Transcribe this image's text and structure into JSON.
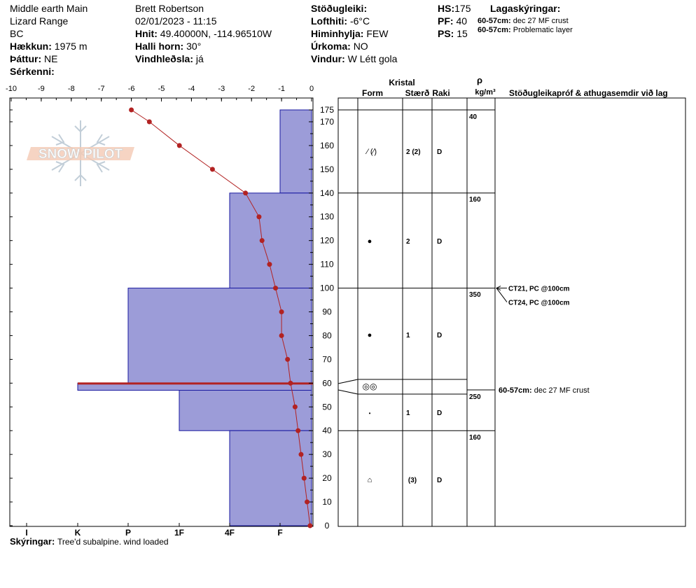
{
  "header": {
    "location": "Middle earth Main",
    "range": "Lizard Range",
    "region": "BC",
    "elevation_label": "Hækkun:",
    "elevation_value": "1975 m",
    "aspect_label": "Þáttur:",
    "aspect_value": "NE",
    "features_label": "Sérkenni:",
    "features_value": "",
    "observer": "Brett Robertson",
    "datetime": "02/01/2023 - 11:15",
    "coords_label": "Hnit:",
    "coords_value": "49.40000N, -114.96510W",
    "slope_label": "Halli horn:",
    "slope_value": "30°",
    "wind_loading_label": "Vindhleðsla:",
    "wind_loading_value": "já",
    "stability_label": "Stöðugleiki:",
    "stability_value": "",
    "airtemp_label": "Lofthiti:",
    "airtemp_value": "-6°C",
    "sky_label": "Himinhylja:",
    "sky_value": "FEW",
    "precip_label": "Úrkoma:",
    "precip_value": "NO",
    "wind_label": "Vindur:",
    "wind_value": "W Létt gola",
    "hs_label": "HS:",
    "hs_value": "175",
    "pf_label": "PF:",
    "pf_value": "40",
    "ps_label": "PS:",
    "ps_value": "15",
    "legend_title": "Lagaskýringar:",
    "legend_items": [
      {
        "depth": "60-57cm:",
        "text": "dec 27 MF crust"
      },
      {
        "depth": "60-57cm:",
        "text": "Problematic layer"
      }
    ]
  },
  "footer": {
    "comments_label": "Skýringar:",
    "comments_value": "Tree'd subalpine. wind loaded"
  },
  "watermark": "SNOW PILOT",
  "columns": {
    "kristal": "Kristal",
    "form": "Form",
    "size": "Stærð",
    "moisture": "Raki",
    "rho": "ρ",
    "density_unit": "kg/m³",
    "tests": "Stöðugleikapróf & athugasemdir við lag"
  },
  "chart_data": {
    "type": "snow_profile",
    "temperature_axis": {
      "ticks": [
        -10,
        -9,
        -8,
        -7,
        -6,
        -5,
        -4,
        -3,
        -2,
        -1,
        0
      ],
      "range": [
        -10,
        0
      ]
    },
    "depth_axis": {
      "ticks": [
        0,
        10,
        20,
        30,
        40,
        50,
        60,
        70,
        80,
        90,
        100,
        110,
        120,
        130,
        140,
        150,
        160,
        170,
        175
      ],
      "range": [
        0,
        175
      ]
    },
    "hardness_axis": {
      "ticks": [
        "I",
        "K",
        "P",
        "1F",
        "4F",
        "F"
      ]
    },
    "temperature_profile": [
      {
        "depth": 175,
        "temp": -6.0
      },
      {
        "depth": 170,
        "temp": -5.4
      },
      {
        "depth": 160,
        "temp": -4.4
      },
      {
        "depth": 150,
        "temp": -3.3
      },
      {
        "depth": 140,
        "temp": -2.2
      },
      {
        "depth": 130,
        "temp": -1.75
      },
      {
        "depth": 120,
        "temp": -1.65
      },
      {
        "depth": 110,
        "temp": -1.4
      },
      {
        "depth": 100,
        "temp": -1.2
      },
      {
        "depth": 90,
        "temp": -1.0
      },
      {
        "depth": 80,
        "temp": -1.0
      },
      {
        "depth": 70,
        "temp": -0.8
      },
      {
        "depth": 60,
        "temp": -0.7
      },
      {
        "depth": 50,
        "temp": -0.55
      },
      {
        "depth": 40,
        "temp": -0.45
      },
      {
        "depth": 30,
        "temp": -0.35
      },
      {
        "depth": 20,
        "temp": -0.25
      },
      {
        "depth": 10,
        "temp": -0.15
      },
      {
        "depth": 0,
        "temp": -0.05
      }
    ],
    "layers": [
      {
        "top": 175,
        "bottom": 140,
        "hardness": "F",
        "form": "decomposing",
        "size": "2 (2)",
        "moisture": "D",
        "density": "40"
      },
      {
        "top": 140,
        "bottom": 100,
        "hardness": "4F",
        "form": "rounded",
        "size": "2",
        "moisture": "D",
        "density": "160"
      },
      {
        "top": 100,
        "bottom": 60,
        "hardness": "P",
        "form": "rounded",
        "size": "1",
        "moisture": "D",
        "density": "350"
      },
      {
        "top": 60,
        "bottom": 57,
        "hardness": "K",
        "form": "melt-freeze crust",
        "size": "",
        "moisture": "",
        "density": ""
      },
      {
        "top": 57,
        "bottom": 40,
        "hardness": "1F",
        "form": "small rounded",
        "size": "1",
        "moisture": "D",
        "density": "250"
      },
      {
        "top": 40,
        "bottom": 0,
        "hardness": "4F",
        "form": "depth hoar",
        "size": "(3)",
        "moisture": "D",
        "density": "160"
      }
    ],
    "tests": [
      {
        "depth": 100,
        "text": "CT21, PC @100cm"
      },
      {
        "depth": 100,
        "text": "CT24, PC @100cm"
      }
    ],
    "layer_notes": [
      {
        "depth": 57,
        "label": "60-57cm:",
        "text": "dec 27 MF crust"
      }
    ],
    "colors": {
      "hardness_fill": "#9c9cd8",
      "hardness_stroke": "#1a1aa0",
      "temperature": "#b22222",
      "problem_layer": "#b22222"
    }
  }
}
